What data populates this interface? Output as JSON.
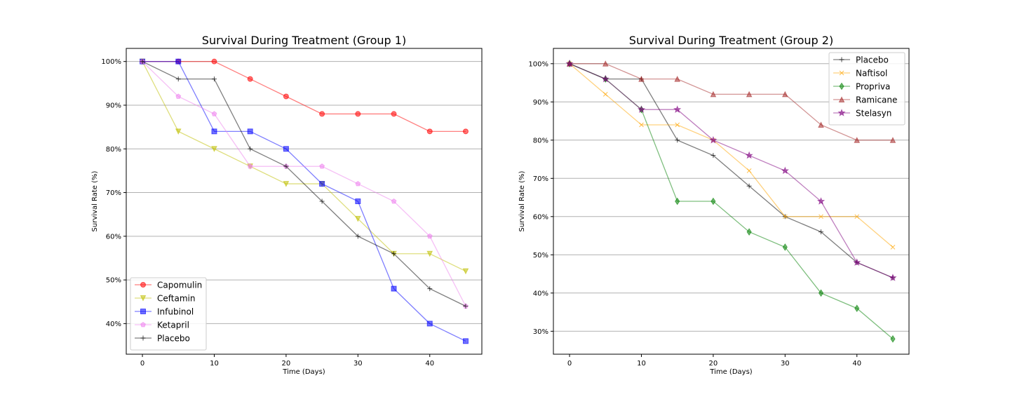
{
  "chart_data": [
    {
      "type": "line",
      "title": "Survival During Treatment (Group 1)",
      "xlabel": "Time (Days)",
      "ylabel": "Survival Rate (%)",
      "x": [
        0,
        5,
        10,
        15,
        20,
        25,
        30,
        35,
        40,
        45
      ],
      "xlim": [
        -2.25,
        47.25
      ],
      "ylim": [
        33,
        103
      ],
      "xticks": [
        0,
        10,
        20,
        30,
        40
      ],
      "xtick_labels": [
        "0",
        "10",
        "20",
        "30",
        "40"
      ],
      "yticks": [
        40,
        50,
        60,
        70,
        80,
        90,
        100
      ],
      "ytick_labels": [
        "40%",
        "50%",
        "60%",
        "70%",
        "80%",
        "90%",
        "100%"
      ],
      "grid": "horizontal",
      "legend_position": "lower-left",
      "series": [
        {
          "name": "Capomulin",
          "values": [
            100,
            100,
            100,
            96,
            92,
            88,
            88,
            88,
            84,
            84
          ],
          "color": "#ff0000",
          "marker": "circle"
        },
        {
          "name": "Ceftamin",
          "values": [
            100,
            84,
            80,
            76,
            72,
            72,
            64,
            56,
            56,
            52
          ],
          "color": "#bfbf00",
          "marker": "triangle-down"
        },
        {
          "name": "Infubinol",
          "values": [
            100,
            100,
            84,
            84,
            80,
            72,
            68,
            48,
            40,
            36
          ],
          "color": "#0000ff",
          "marker": "square"
        },
        {
          "name": "Ketapril",
          "values": [
            100,
            92,
            88,
            76,
            76,
            76,
            72,
            68,
            60,
            44
          ],
          "color": "#ee82ee",
          "marker": "pentagon"
        },
        {
          "name": "Placebo",
          "values": [
            100,
            96,
            96,
            80,
            76,
            68,
            60,
            56,
            48,
            44
          ],
          "color": "#000000",
          "marker": "plus"
        }
      ]
    },
    {
      "type": "line",
      "title": "Survival During Treatment (Group 2)",
      "xlabel": "Time (Days)",
      "ylabel": "Survival Rate (%)",
      "x": [
        0,
        5,
        10,
        15,
        20,
        25,
        30,
        35,
        40,
        45
      ],
      "xlim": [
        -2.25,
        47.25
      ],
      "ylim": [
        24,
        104
      ],
      "xticks": [
        0,
        10,
        20,
        30,
        40
      ],
      "xtick_labels": [
        "0",
        "10",
        "20",
        "30",
        "40"
      ],
      "yticks": [
        30,
        40,
        50,
        60,
        70,
        80,
        90,
        100
      ],
      "ytick_labels": [
        "30%",
        "40%",
        "50%",
        "60%",
        "70%",
        "80%",
        "90%",
        "100%"
      ],
      "grid": "horizontal",
      "legend_position": "upper-right",
      "series": [
        {
          "name": "Placebo",
          "values": [
            100,
            96,
            96,
            80,
            76,
            68,
            60,
            56,
            48,
            44
          ],
          "color": "#000000",
          "marker": "plus"
        },
        {
          "name": "Naftisol",
          "values": [
            100,
            92,
            84,
            84,
            80,
            72,
            60,
            60,
            60,
            52
          ],
          "color": "#ffa500",
          "marker": "x"
        },
        {
          "name": "Propriva",
          "values": [
            100,
            96,
            88,
            64,
            64,
            56,
            52,
            40,
            36,
            28
          ],
          "color": "#008000",
          "marker": "diamond"
        },
        {
          "name": "Ramicane",
          "values": [
            100,
            100,
            96,
            96,
            92,
            92,
            92,
            84,
            80,
            80
          ],
          "color": "#a52a2a",
          "marker": "triangle-up"
        },
        {
          "name": "Stelasyn",
          "values": [
            100,
            96,
            88,
            88,
            80,
            76,
            72,
            64,
            48,
            44
          ],
          "color": "#800080",
          "marker": "star"
        }
      ]
    }
  ]
}
